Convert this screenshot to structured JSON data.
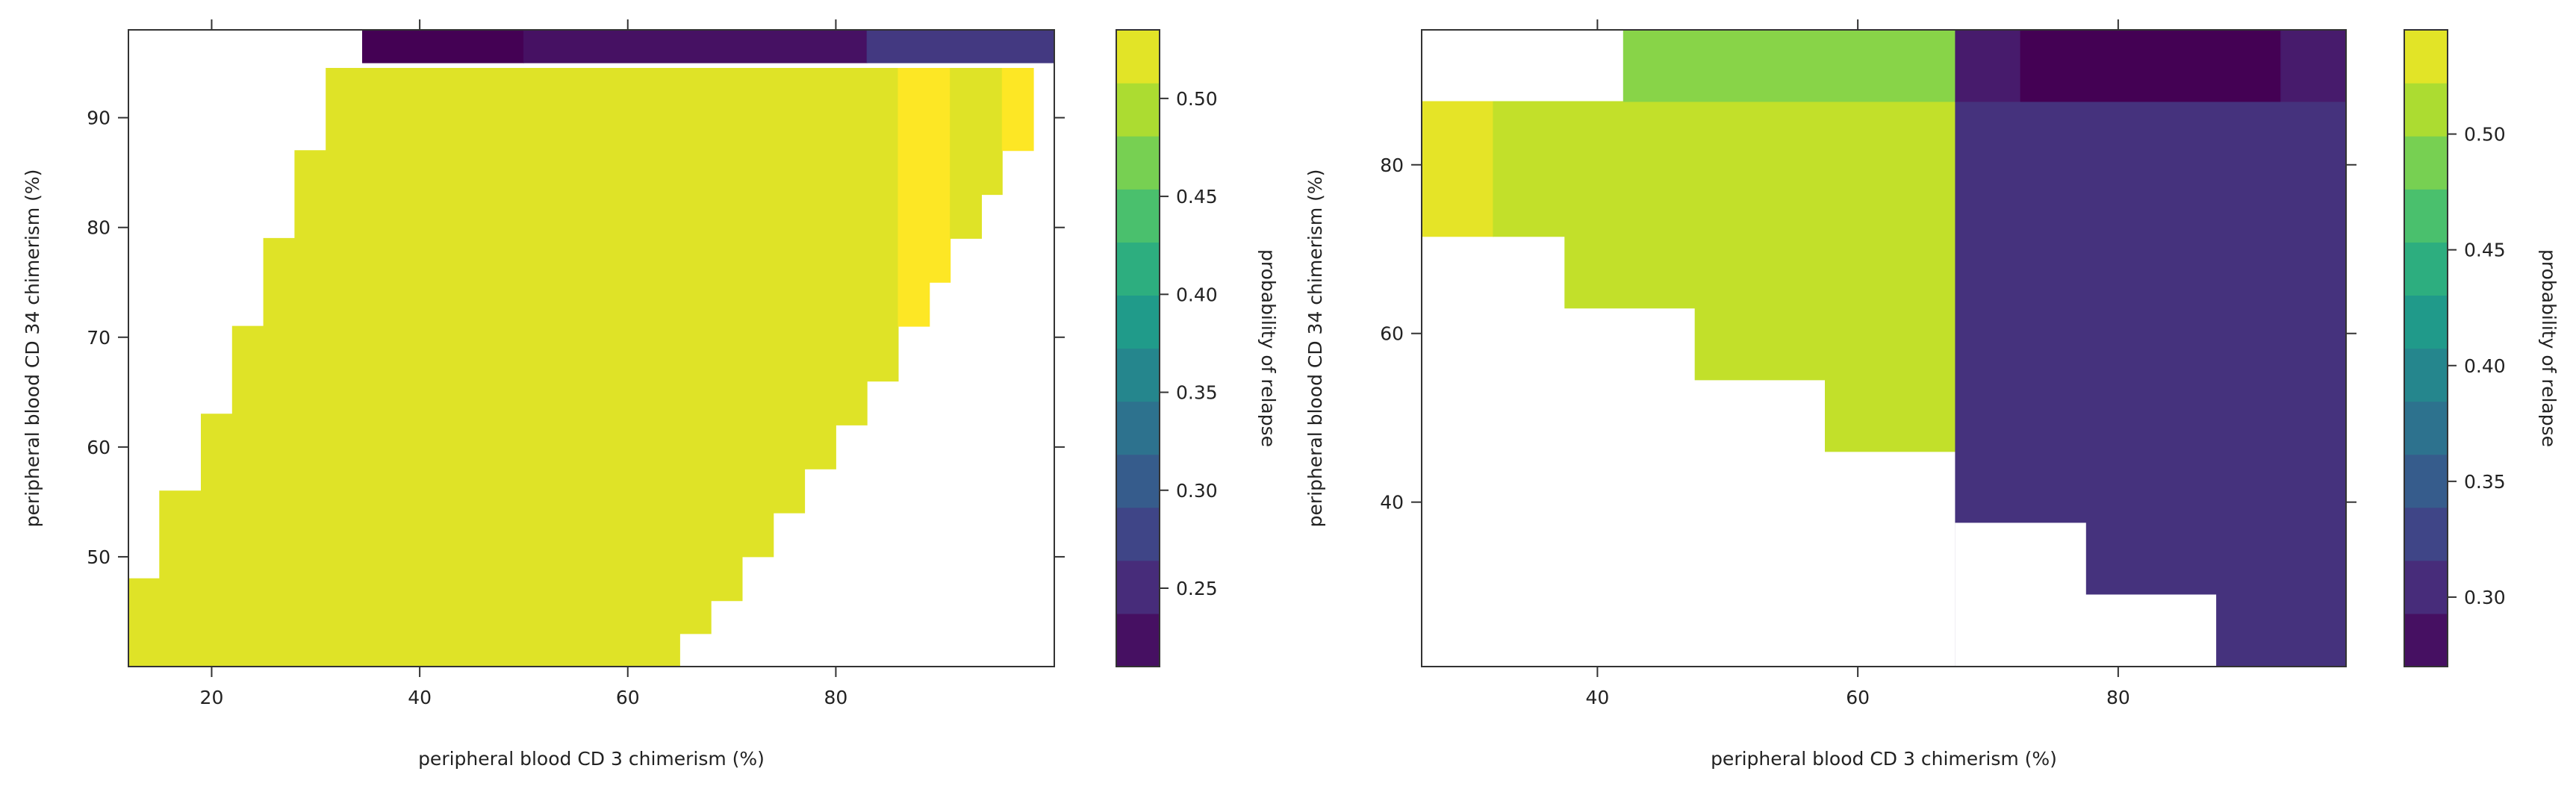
{
  "chart_data": [
    {
      "type": "heatmap",
      "xlabel": "peripheral blood CD 3 chimerism (%)",
      "ylabel": "peripheral blood CD 34 chimerism (%)",
      "xlim": [
        12,
        101
      ],
      "ylim": [
        40,
        98
      ],
      "xticks": [
        20,
        40,
        60,
        80
      ],
      "yticks": [
        50,
        60,
        70,
        80,
        90
      ],
      "colorbar": {
        "label": "probability of relapse",
        "range": [
          0.21,
          0.535
        ],
        "ticks": [
          0.25,
          0.3,
          0.35,
          0.4,
          0.45,
          0.5
        ],
        "tick_labels": [
          "0.25",
          "0.30",
          "0.35",
          "0.40",
          "0.45",
          "0.50"
        ]
      },
      "regions": [
        {
          "value": 0.52,
          "polygon": [
            [
              12,
              40
            ],
            [
              65,
              40
            ],
            [
              65,
              43
            ],
            [
              68,
              43
            ],
            [
              68,
              46
            ],
            [
              71,
              46
            ],
            [
              71,
              50
            ],
            [
              74,
              50
            ],
            [
              74,
              54
            ],
            [
              77,
              54
            ],
            [
              77,
              58
            ],
            [
              80,
              58
            ],
            [
              80,
              62
            ],
            [
              83,
              62
            ],
            [
              83,
              66
            ],
            [
              86,
              66
            ],
            [
              86,
              94.5
            ],
            [
              31,
              94.5
            ],
            [
              31,
              87
            ],
            [
              28,
              87
            ],
            [
              28,
              79
            ],
            [
              25,
              79
            ],
            [
              25,
              71
            ],
            [
              22,
              71
            ],
            [
              22,
              63
            ],
            [
              19,
              63
            ],
            [
              19,
              56
            ],
            [
              15,
              56
            ],
            [
              15,
              48
            ],
            [
              12,
              48
            ]
          ]
        },
        {
          "value": 0.535,
          "polygon": [
            [
              86,
              94.5
            ],
            [
              91,
              94.5
            ],
            [
              91,
              75
            ],
            [
              89,
              75
            ],
            [
              89,
              71
            ],
            [
              86,
              71
            ]
          ]
        },
        {
          "value": 0.52,
          "polygon": [
            [
              91,
              94.5
            ],
            [
              96,
              94.5
            ],
            [
              96,
              83
            ],
            [
              94,
              83
            ],
            [
              94,
              79
            ],
            [
              91,
              79
            ]
          ]
        },
        {
          "value": 0.535,
          "polygon": [
            [
              96,
              94.5
            ],
            [
              99,
              94.5
            ],
            [
              99,
              87
            ],
            [
              96,
              87
            ]
          ]
        },
        {
          "value": 0.21,
          "polygon": [
            [
              34.5,
              95
            ],
            [
              50,
              95
            ],
            [
              50,
              98
            ],
            [
              34.5,
              98
            ]
          ]
        },
        {
          "value": 0.225,
          "polygon": [
            [
              50,
              95
            ],
            [
              83,
              95
            ],
            [
              83,
              98
            ],
            [
              50,
              98
            ]
          ]
        },
        {
          "value": 0.265,
          "polygon": [
            [
              83,
              95
            ],
            [
              101,
              95
            ],
            [
              101,
              98
            ],
            [
              83,
              98
            ]
          ]
        }
      ]
    },
    {
      "type": "heatmap",
      "xlabel": "peripheral blood CD 3 chimerism (%)",
      "ylabel": "peripheral blood CD 34 chimerism (%)",
      "xlim": [
        26.5,
        97.5
      ],
      "ylim": [
        20.5,
        96
      ],
      "xticks": [
        40,
        60,
        80
      ],
      "yticks": [
        40,
        60,
        80
      ],
      "colorbar": {
        "label": "probability of relapse",
        "range": [
          0.27,
          0.545
        ],
        "ticks": [
          0.3,
          0.35,
          0.4,
          0.45,
          0.5
        ],
        "tick_labels": [
          "0.30",
          "0.35",
          "0.40",
          "0.45",
          "0.50"
        ]
      },
      "regions": [
        {
          "value": 0.535,
          "polygon": [
            [
              26.5,
              71.5
            ],
            [
              32,
              71.5
            ],
            [
              32,
              87.5
            ],
            [
              26.5,
              87.5
            ]
          ]
        },
        {
          "value": 0.52,
          "polygon": [
            [
              32,
              87.5
            ],
            [
              67.5,
              87.5
            ],
            [
              67.5,
              46
            ],
            [
              57.5,
              46
            ],
            [
              57.5,
              54.5
            ],
            [
              47.5,
              54.5
            ],
            [
              47.5,
              63
            ],
            [
              37.5,
              63
            ],
            [
              37.5,
              71.5
            ],
            [
              32,
              71.5
            ]
          ]
        },
        {
          "value": 0.495,
          "polygon": [
            [
              42,
              87.5
            ],
            [
              67.5,
              87.5
            ],
            [
              67.5,
              96
            ],
            [
              42,
              96
            ]
          ]
        },
        {
          "value": 0.31,
          "polygon": [
            [
              67.5,
              20.5
            ],
            [
              97.5,
              20.5
            ],
            [
              97.5,
              87.5
            ],
            [
              67.5,
              87.5
            ]
          ]
        },
        {
          "value": 0.29,
          "polygon": [
            [
              67.5,
              87.5
            ],
            [
              72.5,
              87.5
            ],
            [
              72.5,
              96
            ],
            [
              67.5,
              96
            ]
          ]
        },
        {
          "value": 0.27,
          "polygon": [
            [
              72.5,
              87.5
            ],
            [
              92.5,
              87.5
            ],
            [
              92.5,
              96
            ],
            [
              72.5,
              96
            ]
          ]
        },
        {
          "value": 0.29,
          "polygon": [
            [
              92.5,
              87.5
            ],
            [
              97.5,
              87.5
            ],
            [
              97.5,
              96
            ],
            [
              92.5,
              96
            ]
          ]
        }
      ],
      "blank_polygon": [
        [
          67.5,
          20.5
        ],
        [
          87.5,
          20.5
        ],
        [
          87.5,
          29
        ],
        [
          77.5,
          29
        ],
        [
          77.5,
          37.5
        ],
        [
          67.5,
          37.5
        ]
      ]
    }
  ]
}
